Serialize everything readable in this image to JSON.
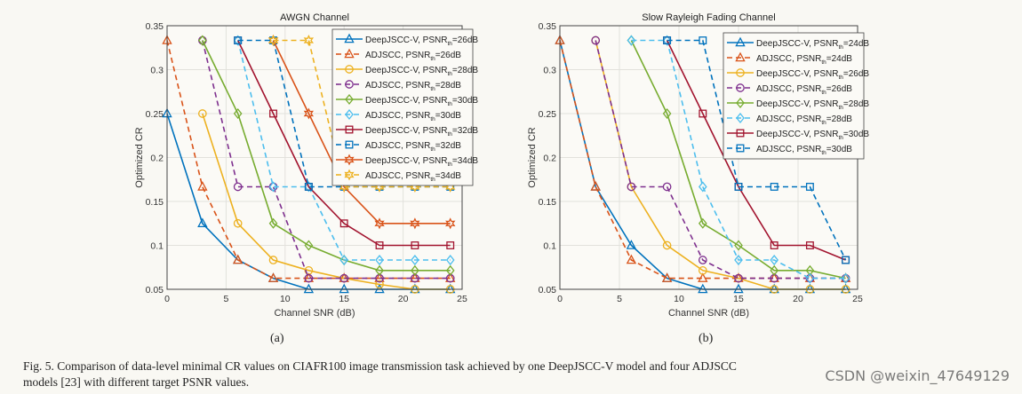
{
  "colors": {
    "blue": "#0072BD",
    "orange": "#D95319",
    "yellow": "#EDB120",
    "purple": "#7E2F8E",
    "green": "#77AC30",
    "cyan": "#4DBEEE",
    "red": "#A2142F"
  },
  "chart_data": [
    {
      "type": "line",
      "title": "AWGN Channel",
      "xlabel": "Channel SNR (dB)",
      "ylabel": "Optimized CR",
      "xlim": [
        0,
        25
      ],
      "ylim": [
        0.05,
        0.35
      ],
      "xticks": [
        0,
        5,
        10,
        15,
        20,
        25
      ],
      "yticks": [
        0.05,
        0.1,
        0.15,
        0.2,
        0.25,
        0.3,
        0.35
      ],
      "ytick_labels": [
        "0.05",
        "0.1",
        "0.15",
        "0.2",
        "0.25",
        "0.3",
        "0.35"
      ],
      "grid": true,
      "legend_position": "top-right",
      "series": [
        {
          "name": "DeepJSCC-V, PSNR",
          "sub": "th",
          "suffix": "=26dB",
          "color": "blue",
          "dash": false,
          "marker": "triangle",
          "x": [
            0,
            3,
            6,
            9,
            12,
            15,
            18,
            21,
            24
          ],
          "y": [
            0.25,
            0.125,
            0.0833,
            0.0625,
            0.05,
            0.05,
            0.05,
            0.05,
            0.05
          ]
        },
        {
          "name": "ADJSCC, PSNR",
          "sub": "th",
          "suffix": "=26dB",
          "color": "orange",
          "dash": true,
          "marker": "triangle",
          "x": [
            0,
            3,
            6,
            9,
            12,
            15,
            18,
            21,
            24
          ],
          "y": [
            0.3333,
            0.1667,
            0.0833,
            0.0625,
            0.0625,
            0.0625,
            0.0625,
            0.0625,
            0.0625
          ]
        },
        {
          "name": "DeepJSCC-V, PSNR",
          "sub": "th",
          "suffix": "=28dB",
          "color": "yellow",
          "dash": false,
          "marker": "circle",
          "x": [
            3,
            6,
            9,
            12,
            15,
            18,
            21,
            24
          ],
          "y": [
            0.25,
            0.125,
            0.0833,
            0.0714,
            0.0625,
            0.0556,
            0.05,
            0.05
          ]
        },
        {
          "name": "ADJSCC, PSNR",
          "sub": "th",
          "suffix": "=28dB",
          "color": "purple",
          "dash": true,
          "marker": "circle",
          "x": [
            3,
            6,
            9,
            12,
            15,
            18,
            21,
            24
          ],
          "y": [
            0.3333,
            0.1667,
            0.1667,
            0.0625,
            0.0625,
            0.0625,
            0.0625,
            0.0625
          ]
        },
        {
          "name": "DeepJSCC-V, PSNR",
          "sub": "th",
          "suffix": "=30dB",
          "color": "green",
          "dash": false,
          "marker": "diamond",
          "x": [
            3,
            6,
            9,
            12,
            15,
            18,
            21,
            24
          ],
          "y": [
            0.3333,
            0.25,
            0.125,
            0.1,
            0.0833,
            0.0714,
            0.0714,
            0.0714
          ]
        },
        {
          "name": "ADJSCC, PSNR",
          "sub": "th",
          "suffix": "=30dB",
          "color": "cyan",
          "dash": true,
          "marker": "diamond",
          "x": [
            6,
            9,
            12,
            15,
            18,
            21,
            24
          ],
          "y": [
            0.3333,
            0.1667,
            0.1667,
            0.0833,
            0.0833,
            0.0833,
            0.0833
          ]
        },
        {
          "name": "DeepJSCC-V, PSNR",
          "sub": "th",
          "suffix": "=32dB",
          "color": "red",
          "dash": false,
          "marker": "square",
          "x": [
            6,
            9,
            12,
            15,
            18,
            21,
            24
          ],
          "y": [
            0.3333,
            0.25,
            0.1667,
            0.125,
            0.1,
            0.1,
            0.1
          ]
        },
        {
          "name": "ADJSCC, PSNR",
          "sub": "th",
          "suffix": "=32dB",
          "color": "blue",
          "dash": true,
          "marker": "square",
          "x": [
            6,
            9,
            12,
            15,
            18,
            21,
            24
          ],
          "y": [
            0.3333,
            0.3333,
            0.1667,
            0.1667,
            0.1667,
            0.1667,
            0.1667
          ]
        },
        {
          "name": "DeepJSCC-V, PSNR",
          "sub": "th",
          "suffix": "=34dB",
          "color": "orange",
          "dash": false,
          "marker": "star",
          "x": [
            9,
            12,
            15,
            18,
            21,
            24
          ],
          "y": [
            0.3333,
            0.25,
            0.1667,
            0.125,
            0.125,
            0.125
          ]
        },
        {
          "name": "ADJSCC, PSNR",
          "sub": "th",
          "suffix": "=34dB",
          "color": "yellow",
          "dash": true,
          "marker": "star",
          "x": [
            9,
            12,
            15,
            18,
            21,
            24
          ],
          "y": [
            0.3333,
            0.3333,
            0.1667,
            0.1667,
            0.1667,
            0.1667
          ]
        }
      ]
    },
    {
      "type": "line",
      "title": "Slow Rayleigh Fading Channel",
      "xlabel": "Channel SNR (dB)",
      "ylabel": "Optimized CR",
      "xlim": [
        0,
        25
      ],
      "ylim": [
        0.05,
        0.35
      ],
      "xticks": [
        0,
        5,
        10,
        15,
        20,
        25
      ],
      "yticks": [
        0.05,
        0.1,
        0.15,
        0.2,
        0.25,
        0.3,
        0.35
      ],
      "ytick_labels": [
        "0.05",
        "0.1",
        "0.15",
        "0.2",
        "0.25",
        "0.3",
        "0.35"
      ],
      "grid": true,
      "legend_position": "top-right",
      "series": [
        {
          "name": "DeepJSCC-V, PSNR",
          "sub": "th",
          "suffix": "=24dB",
          "color": "blue",
          "dash": false,
          "marker": "triangle",
          "x": [
            0,
            3,
            6,
            9,
            12,
            15,
            18,
            21,
            24
          ],
          "y": [
            0.3333,
            0.1667,
            0.1,
            0.0625,
            0.05,
            0.05,
            0.05,
            0.05,
            0.05
          ]
        },
        {
          "name": "ADJSCC, PSNR",
          "sub": "th",
          "suffix": "=24dB",
          "color": "orange",
          "dash": true,
          "marker": "triangle",
          "x": [
            0,
            3,
            6,
            9,
            12,
            15,
            18,
            21,
            24
          ],
          "y": [
            0.3333,
            0.1667,
            0.0833,
            0.0625,
            0.0625,
            0.0625,
            0.0625,
            0.0625,
            0.0625
          ]
        },
        {
          "name": "DeepJSCC-V, PSNR",
          "sub": "th",
          "suffix": "=26dB",
          "color": "yellow",
          "dash": false,
          "marker": "circle",
          "x": [
            3,
            6,
            9,
            12,
            15,
            18,
            21,
            24
          ],
          "y": [
            0.3333,
            0.1667,
            0.1,
            0.0714,
            0.0625,
            0.05,
            0.05,
            0.05
          ]
        },
        {
          "name": "ADJSCC, PSNR",
          "sub": "th",
          "suffix": "=26dB",
          "color": "purple",
          "dash": true,
          "marker": "circle",
          "x": [
            3,
            6,
            9,
            12,
            15,
            18,
            21,
            24
          ],
          "y": [
            0.3333,
            0.1667,
            0.1667,
            0.0833,
            0.0625,
            0.0625,
            0.0625,
            0.0625
          ]
        },
        {
          "name": "DeepJSCC-V, PSNR",
          "sub": "th",
          "suffix": "=28dB",
          "color": "green",
          "dash": false,
          "marker": "diamond",
          "x": [
            6,
            9,
            12,
            15,
            18,
            21,
            24
          ],
          "y": [
            0.3333,
            0.25,
            0.125,
            0.1,
            0.0714,
            0.0714,
            0.0625
          ]
        },
        {
          "name": "ADJSCC, PSNR",
          "sub": "th",
          "suffix": "=28dB",
          "color": "cyan",
          "dash": true,
          "marker": "diamond",
          "x": [
            6,
            9,
            12,
            15,
            18,
            21,
            24
          ],
          "y": [
            0.3333,
            0.3333,
            0.1667,
            0.0833,
            0.0833,
            0.0625,
            0.0625
          ]
        },
        {
          "name": "DeepJSCC-V, PSNR",
          "sub": "th",
          "suffix": "=30dB",
          "color": "red",
          "dash": false,
          "marker": "square",
          "x": [
            9,
            12,
            15,
            18,
            21,
            24
          ],
          "y": [
            0.3333,
            0.25,
            0.1667,
            0.1,
            0.1,
            0.0833
          ]
        },
        {
          "name": "ADJSCC, PSNR",
          "sub": "th",
          "suffix": "=30dB",
          "color": "blue",
          "dash": true,
          "marker": "square",
          "x": [
            9,
            12,
            15,
            18,
            21,
            24
          ],
          "y": [
            0.3333,
            0.3333,
            0.1667,
            0.1667,
            0.1667,
            0.0833
          ]
        }
      ]
    }
  ],
  "subfigure_labels": [
    "(a)",
    "(b)"
  ],
  "caption": {
    "line1": "Fig. 5.   Comparison of data-level minimal CR values on CIAFR100 image transmission task achieved by one DeepJSCC-V model and four ADJSCC",
    "line2": "models [23] with different target PSNR values."
  },
  "watermark": "CSDN @weixin_47649129"
}
